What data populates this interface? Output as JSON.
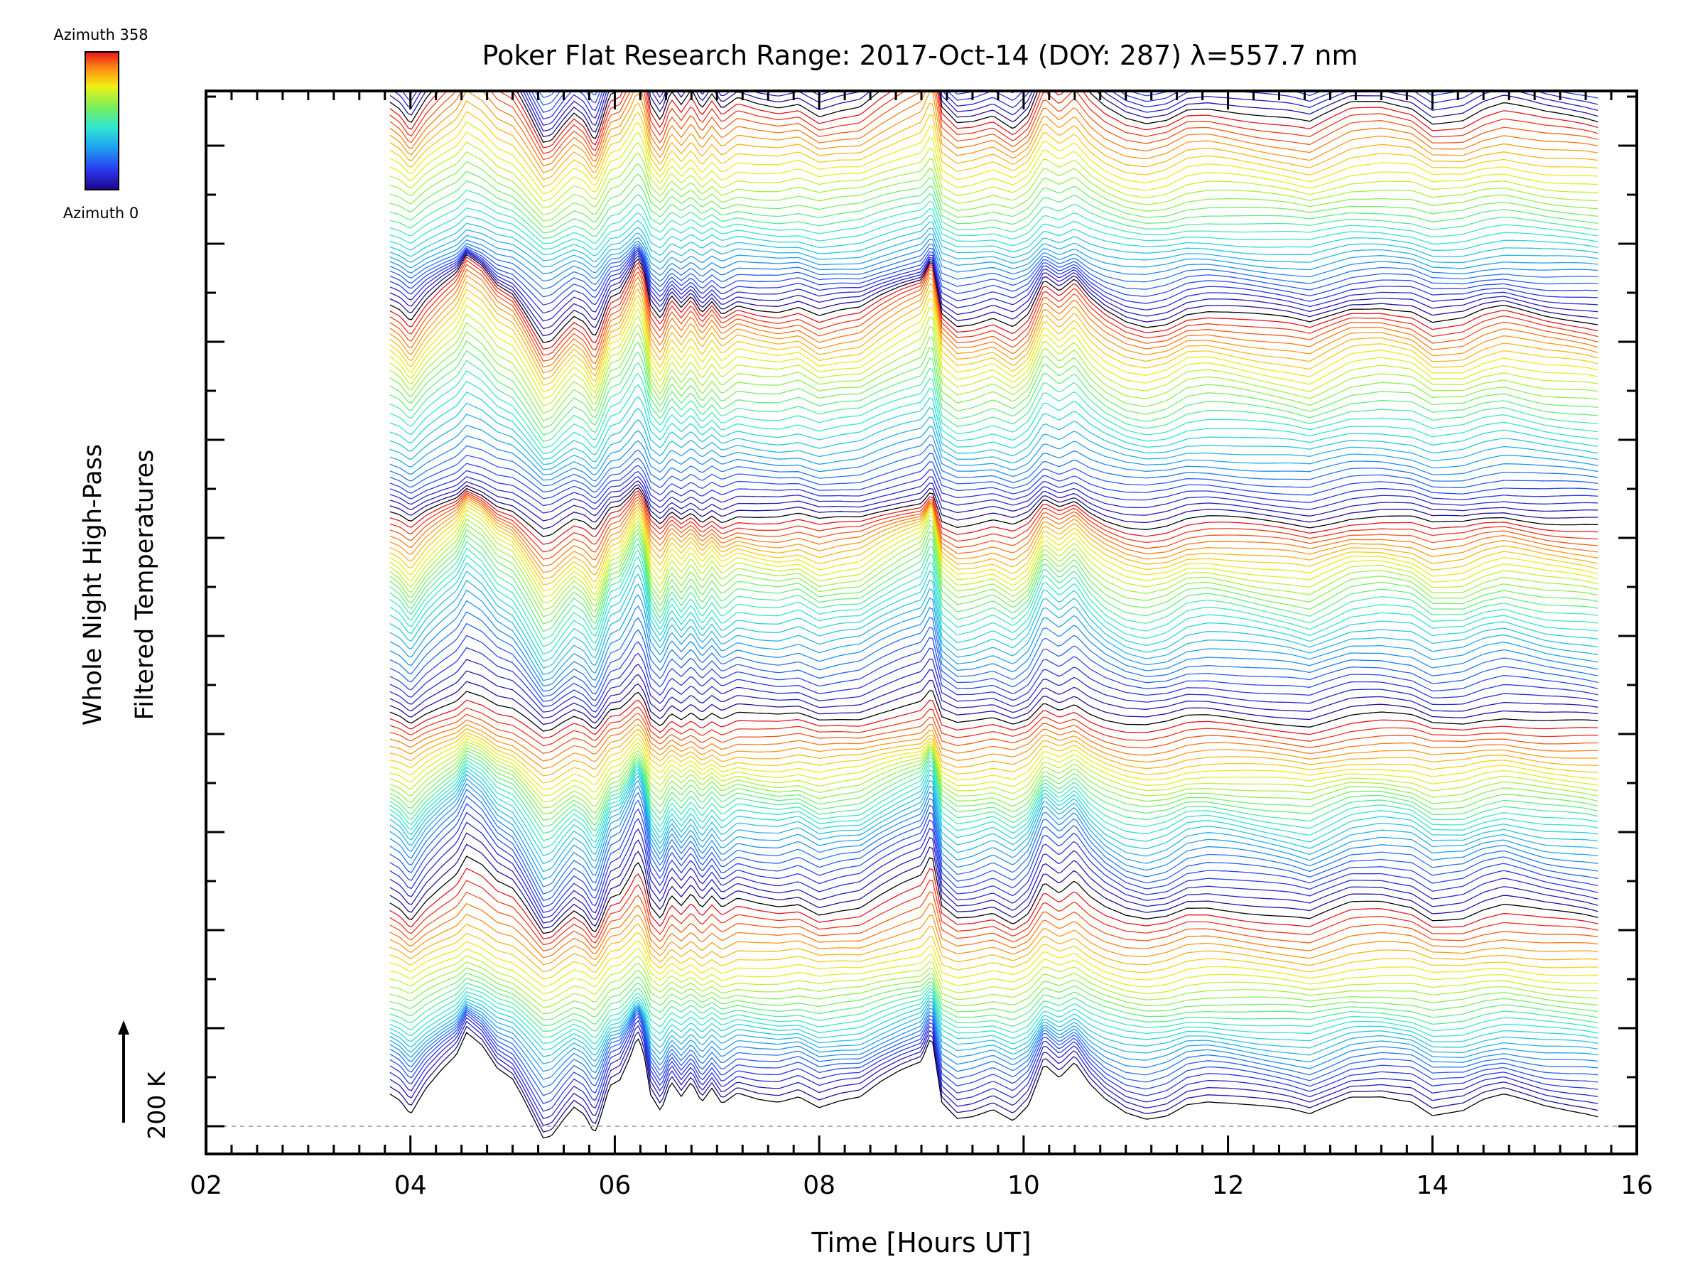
{
  "chart_data": {
    "type": "line",
    "title": "Poker Flat Research Range: 2017-Oct-14 (DOY: 287) λ=557.7 nm",
    "xlabel": "Time [Hours UT]",
    "ylabel_line1": "Whole Night High-Pass",
    "ylabel_line2": "Filtered Temperatures",
    "x_ticks": [
      "02",
      "04",
      "06",
      "08",
      "10",
      "12",
      "14",
      "16"
    ],
    "xlim": [
      2,
      16
    ],
    "x_start": 3.8,
    "x_end": 15.62,
    "scale_label": "200 K",
    "colorbar": {
      "top_label": "Azimuth 358",
      "bottom_label": "Azimuth 0",
      "min": 0,
      "max": 358
    },
    "n_traces": 300,
    "trace_spacing_K": 13.5,
    "series_note": "stacked high-pass filtered temperature traces, one per azimuth, colored by azimuth",
    "common_profile": [
      [
        3.8,
        70
      ],
      [
        3.9,
        55
      ],
      [
        4.0,
        25
      ],
      [
        4.15,
        75
      ],
      [
        4.3,
        110
      ],
      [
        4.45,
        140
      ],
      [
        4.55,
        185
      ],
      [
        4.7,
        160
      ],
      [
        4.85,
        115
      ],
      [
        5.0,
        95
      ],
      [
        5.1,
        60
      ],
      [
        5.2,
        20
      ],
      [
        5.3,
        -20
      ],
      [
        5.38,
        -15
      ],
      [
        5.5,
        20
      ],
      [
        5.6,
        45
      ],
      [
        5.7,
        30
      ],
      [
        5.8,
        -10
      ],
      [
        5.85,
        15
      ],
      [
        5.95,
        85
      ],
      [
        6.05,
        95
      ],
      [
        6.15,
        140
      ],
      [
        6.22,
        180
      ],
      [
        6.28,
        150
      ],
      [
        6.35,
        60
      ],
      [
        6.45,
        25
      ],
      [
        6.55,
        85
      ],
      [
        6.65,
        55
      ],
      [
        6.75,
        85
      ],
      [
        6.85,
        45
      ],
      [
        6.95,
        75
      ],
      [
        7.05,
        45
      ],
      [
        7.2,
        70
      ],
      [
        7.4,
        60
      ],
      [
        7.6,
        55
      ],
      [
        7.8,
        65
      ],
      [
        8.0,
        40
      ],
      [
        8.2,
        50
      ],
      [
        8.4,
        55
      ],
      [
        8.6,
        85
      ],
      [
        8.8,
        110
      ],
      [
        9.0,
        130
      ],
      [
        9.1,
        185
      ],
      [
        9.2,
        50
      ],
      [
        9.35,
        20
      ],
      [
        9.5,
        25
      ],
      [
        9.7,
        40
      ],
      [
        9.9,
        15
      ],
      [
        10.05,
        45
      ],
      [
        10.2,
        125
      ],
      [
        10.35,
        95
      ],
      [
        10.5,
        125
      ],
      [
        10.65,
        80
      ],
      [
        10.8,
        50
      ],
      [
        11.0,
        25
      ],
      [
        11.2,
        15
      ],
      [
        11.4,
        25
      ],
      [
        11.6,
        50
      ],
      [
        11.8,
        55
      ],
      [
        12.0,
        50
      ],
      [
        12.3,
        40
      ],
      [
        12.6,
        30
      ],
      [
        12.8,
        20
      ],
      [
        13.0,
        40
      ],
      [
        13.2,
        60
      ],
      [
        13.5,
        65
      ],
      [
        13.8,
        55
      ],
      [
        14.0,
        25
      ],
      [
        14.3,
        30
      ],
      [
        14.5,
        50
      ],
      [
        14.7,
        60
      ],
      [
        14.9,
        50
      ],
      [
        15.1,
        40
      ],
      [
        15.3,
        35
      ],
      [
        15.5,
        30
      ],
      [
        15.62,
        25
      ]
    ]
  }
}
